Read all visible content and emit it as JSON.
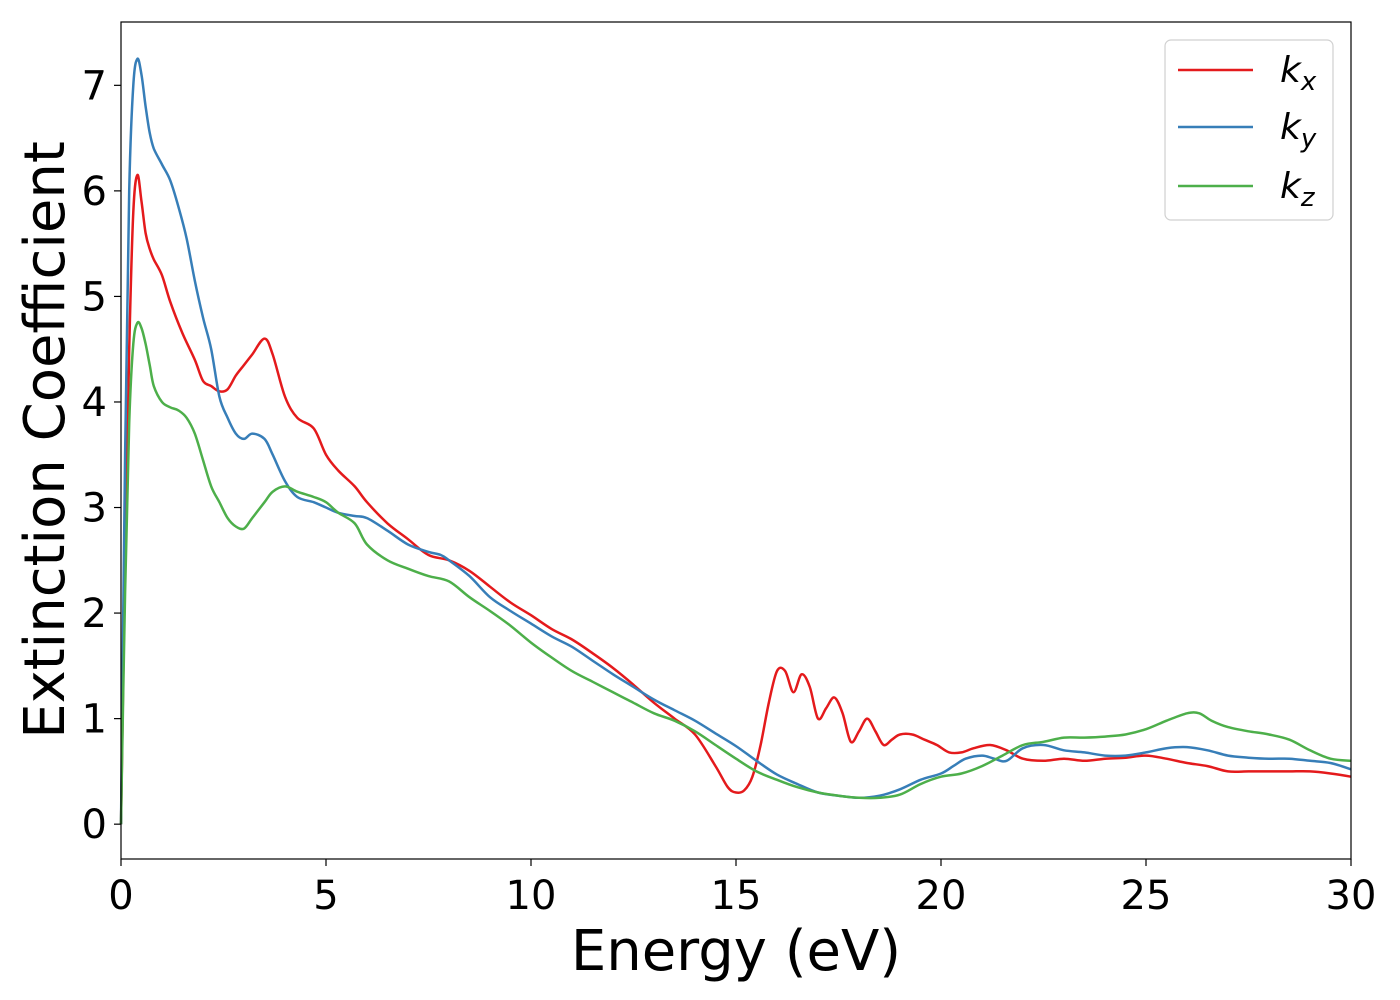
{
  "chart_data": {
    "type": "line",
    "xlabel": "Energy (eV)",
    "ylabel": "Extinction Coefficient",
    "xlim": [
      0,
      30
    ],
    "ylim": [
      -0.33,
      7.6
    ],
    "xticks": [
      0,
      5,
      10,
      15,
      20,
      25,
      30
    ],
    "yticks": [
      0,
      1,
      2,
      3,
      4,
      5,
      6,
      7
    ],
    "xtick_labels": [
      "0",
      "5",
      "10",
      "15",
      "20",
      "25",
      "30"
    ],
    "ytick_labels": [
      "0",
      "1",
      "2",
      "3",
      "4",
      "5",
      "6",
      "7"
    ],
    "grid": false,
    "legend_position": "top-right",
    "series": [
      {
        "name": "k_x",
        "label_main": "k",
        "label_sub": "x",
        "color": "#e41a1c",
        "x": [
          0,
          0.1,
          0.2,
          0.3,
          0.4,
          0.5,
          0.6,
          0.7,
          0.8,
          1.0,
          1.2,
          1.5,
          1.8,
          2.0,
          2.2,
          2.4,
          2.6,
          2.8,
          3.0,
          3.2,
          3.5,
          3.7,
          4.0,
          4.3,
          4.7,
          5.0,
          5.3,
          5.7,
          6.0,
          6.5,
          7.0,
          7.5,
          8.0,
          8.5,
          9.0,
          9.5,
          10,
          10.5,
          11,
          11.5,
          12,
          12.5,
          13,
          13.5,
          14,
          14.5,
          14.8,
          15.0,
          15.2,
          15.4,
          15.6,
          15.8,
          16.0,
          16.2,
          16.4,
          16.6,
          16.8,
          17.0,
          17.2,
          17.4,
          17.6,
          17.8,
          18.0,
          18.2,
          18.4,
          18.6,
          18.8,
          19.0,
          19.3,
          19.6,
          19.9,
          20.2,
          20.5,
          20.8,
          21.2,
          21.6,
          22.0,
          22.5,
          23,
          23.5,
          24,
          24.5,
          25,
          25.5,
          26,
          26.5,
          27,
          27.5,
          28,
          28.5,
          29,
          29.5,
          30
        ],
        "y": [
          0,
          2.5,
          4.5,
          5.8,
          6.15,
          5.9,
          5.6,
          5.45,
          5.35,
          5.2,
          4.95,
          4.65,
          4.4,
          4.2,
          4.15,
          4.1,
          4.12,
          4.25,
          4.35,
          4.45,
          4.6,
          4.45,
          4.05,
          3.85,
          3.75,
          3.5,
          3.35,
          3.2,
          3.05,
          2.85,
          2.7,
          2.55,
          2.5,
          2.4,
          2.25,
          2.1,
          1.98,
          1.85,
          1.75,
          1.62,
          1.48,
          1.32,
          1.15,
          1.0,
          0.85,
          0.55,
          0.35,
          0.3,
          0.32,
          0.45,
          0.75,
          1.15,
          1.45,
          1.45,
          1.25,
          1.42,
          1.3,
          1.0,
          1.1,
          1.2,
          1.05,
          0.78,
          0.88,
          1.0,
          0.88,
          0.75,
          0.8,
          0.85,
          0.85,
          0.8,
          0.75,
          0.68,
          0.68,
          0.72,
          0.75,
          0.7,
          0.62,
          0.6,
          0.62,
          0.6,
          0.62,
          0.63,
          0.65,
          0.62,
          0.58,
          0.55,
          0.5,
          0.5,
          0.5,
          0.5,
          0.5,
          0.48,
          0.45
        ]
      },
      {
        "name": "k_y",
        "label_main": "k",
        "label_sub": "y",
        "color": "#377eb8",
        "x": [
          0,
          0.1,
          0.2,
          0.3,
          0.4,
          0.5,
          0.6,
          0.7,
          0.8,
          1.0,
          1.2,
          1.4,
          1.6,
          1.8,
          2.0,
          2.2,
          2.4,
          2.6,
          2.8,
          3.0,
          3.2,
          3.5,
          3.7,
          4.0,
          4.3,
          4.7,
          5.0,
          5.3,
          5.7,
          6.0,
          6.5,
          7.0,
          7.5,
          7.8,
          8.0,
          8.5,
          9.0,
          9.5,
          10,
          10.5,
          11,
          11.5,
          12,
          12.5,
          13,
          13.5,
          14,
          14.5,
          15,
          15.5,
          16,
          16.5,
          17,
          17.5,
          18,
          18.5,
          19,
          19.5,
          20,
          20.3,
          20.6,
          21,
          21.3,
          21.6,
          22,
          22.5,
          23,
          23.5,
          24,
          24.5,
          25,
          25.5,
          26,
          26.5,
          27,
          27.5,
          28,
          28.5,
          29,
          29.5,
          30
        ],
        "y": [
          0,
          3.5,
          6.0,
          7.0,
          7.25,
          7.1,
          6.8,
          6.55,
          6.4,
          6.25,
          6.1,
          5.85,
          5.55,
          5.15,
          4.8,
          4.5,
          4.05,
          3.85,
          3.7,
          3.65,
          3.7,
          3.65,
          3.5,
          3.25,
          3.1,
          3.05,
          3.0,
          2.95,
          2.92,
          2.9,
          2.78,
          2.65,
          2.58,
          2.55,
          2.5,
          2.35,
          2.15,
          2.02,
          1.9,
          1.78,
          1.68,
          1.55,
          1.42,
          1.3,
          1.18,
          1.08,
          0.98,
          0.86,
          0.74,
          0.6,
          0.47,
          0.38,
          0.3,
          0.27,
          0.25,
          0.27,
          0.33,
          0.42,
          0.48,
          0.55,
          0.62,
          0.65,
          0.62,
          0.6,
          0.72,
          0.75,
          0.7,
          0.68,
          0.65,
          0.65,
          0.68,
          0.72,
          0.73,
          0.7,
          0.65,
          0.63,
          0.62,
          0.62,
          0.6,
          0.58,
          0.52
        ]
      },
      {
        "name": "k_z",
        "label_main": "k",
        "label_sub": "z",
        "color": "#4daf4a",
        "x": [
          0,
          0.1,
          0.2,
          0.3,
          0.4,
          0.5,
          0.6,
          0.7,
          0.8,
          1.0,
          1.2,
          1.4,
          1.6,
          1.8,
          2.0,
          2.2,
          2.4,
          2.6,
          2.8,
          3.0,
          3.2,
          3.5,
          3.7,
          4.0,
          4.3,
          4.7,
          5.0,
          5.3,
          5.7,
          6.0,
          6.5,
          7.0,
          7.5,
          8.0,
          8.5,
          9.0,
          9.5,
          10,
          10.5,
          11,
          11.5,
          12,
          12.5,
          13,
          13.5,
          14,
          14.5,
          15,
          15.5,
          16,
          16.5,
          17,
          17.5,
          18,
          18.5,
          19,
          19.5,
          20,
          20.5,
          21,
          21.5,
          22,
          22.5,
          23,
          23.5,
          24,
          24.5,
          25,
          25.5,
          26,
          26.3,
          26.6,
          27,
          27.5,
          28,
          28.5,
          29,
          29.5,
          30
        ],
        "y": [
          0,
          2.2,
          3.8,
          4.55,
          4.75,
          4.7,
          4.55,
          4.35,
          4.15,
          4.0,
          3.95,
          3.92,
          3.85,
          3.7,
          3.45,
          3.2,
          3.05,
          2.9,
          2.82,
          2.8,
          2.9,
          3.05,
          3.15,
          3.2,
          3.15,
          3.1,
          3.05,
          2.95,
          2.85,
          2.65,
          2.5,
          2.42,
          2.35,
          2.3,
          2.15,
          2.02,
          1.88,
          1.72,
          1.58,
          1.45,
          1.35,
          1.25,
          1.15,
          1.05,
          0.98,
          0.88,
          0.75,
          0.62,
          0.5,
          0.42,
          0.35,
          0.3,
          0.27,
          0.25,
          0.25,
          0.28,
          0.38,
          0.45,
          0.48,
          0.55,
          0.65,
          0.75,
          0.78,
          0.82,
          0.82,
          0.83,
          0.85,
          0.9,
          0.98,
          1.05,
          1.05,
          0.98,
          0.92,
          0.88,
          0.85,
          0.8,
          0.7,
          0.62,
          0.6
        ]
      }
    ]
  }
}
